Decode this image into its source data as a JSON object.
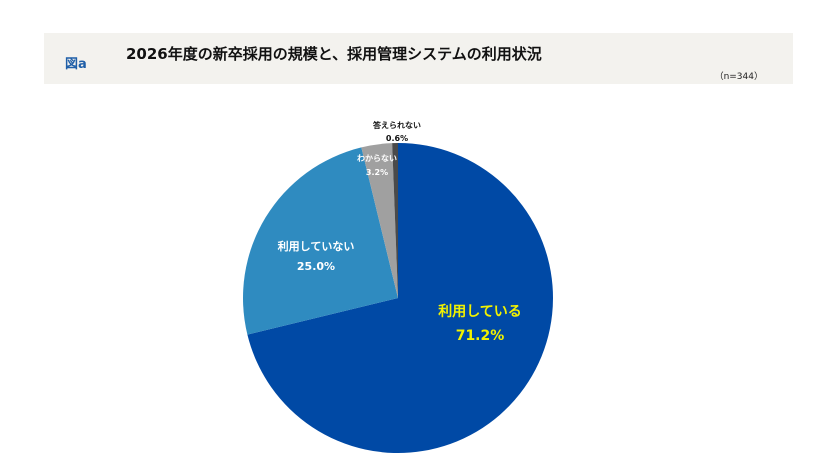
{
  "header": {
    "figure_label": "図a",
    "title": "2026年度の新卒採用の規模と、採用管理システムの利用状況",
    "sample": "（n=344）"
  },
  "chart_data": {
    "type": "pie",
    "title": "2026年度の新卒採用の規模と、採用管理システムの利用状況",
    "start": "top, clockwise",
    "slices": [
      {
        "label": "利用している",
        "value": 71.2,
        "value_label": "71.2%",
        "color": "#0049a5",
        "label_color": "#f2f200"
      },
      {
        "label": "利用していない",
        "value": 25.0,
        "value_label": "25.0%",
        "color": "#2f8bc0",
        "label_color": "#ffffff"
      },
      {
        "label": "わからない",
        "value": 3.2,
        "value_label": "3.2%",
        "color": "#a0a0a0",
        "label_color": "#ffffff"
      },
      {
        "label": "答えられない",
        "value": 0.6,
        "value_label": "0.6%",
        "color": "#4a4a4a",
        "label_color": "#111111"
      }
    ]
  }
}
